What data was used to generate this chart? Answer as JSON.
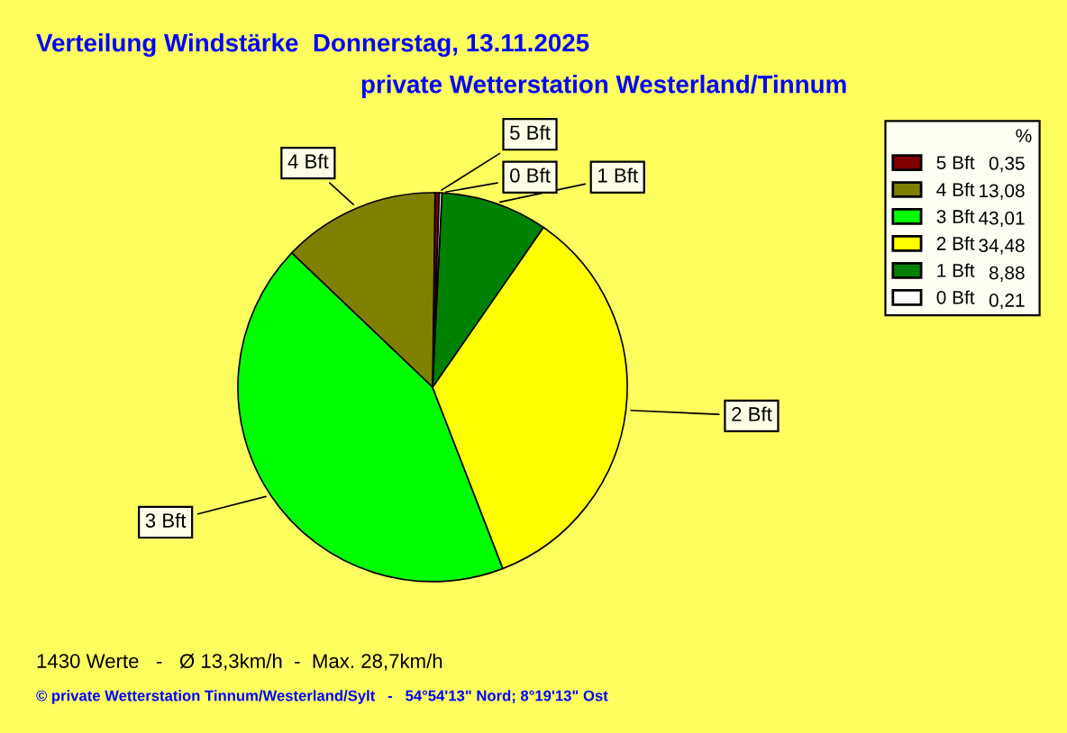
{
  "chart_data": {
    "type": "pie",
    "title": "Verteilung Windstärke  Donnerstag, 13.11.2025",
    "subtitle": "private Wetterstation Westerland/Tinnum",
    "categories": [
      "5 Bft",
      "4 Bft",
      "3 Bft",
      "2 Bft",
      "1 Bft",
      "0 Bft"
    ],
    "values": [
      0.35,
      13.08,
      43.01,
      34.48,
      8.88,
      0.21
    ],
    "value_labels": [
      "0,35",
      "13,08",
      "43,01",
      "34,48",
      "8,88",
      "0,21"
    ],
    "colors": [
      "#800000",
      "#808000",
      "#00ff00",
      "#ffff00",
      "#008000",
      "#ffffff"
    ],
    "legend": "top right",
    "legend_title": "%",
    "annotations": [
      "1430 Werte   -   Ø 13,3km/h  -  Max. 28,7km/h",
      "© private Wetterstation Tinnum/Westerland/Sylt   -   54°54'13\" Nord; 8°19'13\" Ost"
    ]
  }
}
